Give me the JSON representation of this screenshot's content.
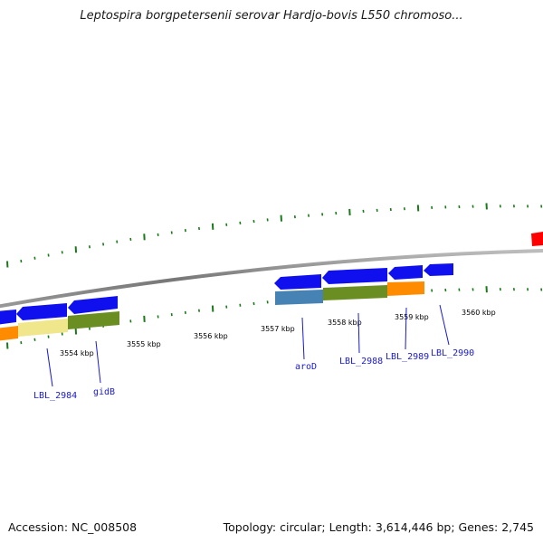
{
  "title": "Leptospira borgpetersenii serovar Hardjo-bovis L550 chromoso...",
  "footer": {
    "accession": "Accession: NC_008508",
    "summary": "Topology: circular; Length: 3,614,446 bp; Genes: 2,745"
  },
  "scale_labels": [
    "3554 kbp",
    "3555 kbp",
    "3556 kbp",
    "3557 kbp",
    "3558 kbp",
    "3559 kbp",
    "3560 kbp"
  ],
  "gene_labels": [
    "LBL_2984",
    "gidB",
    "aroD",
    "LBL_2988",
    "LBL_2989",
    "LBL_2990"
  ],
  "colors": {
    "forward_gene": "#1010ee",
    "backbone": "#888888",
    "tick": "#1a7a1a",
    "orange": "#ff8c00",
    "olive": "#6b8e23",
    "khaki": "#f0e68c",
    "steelblue": "#4682b4",
    "red": "#ff0000",
    "label": "#1a1ad0"
  }
}
